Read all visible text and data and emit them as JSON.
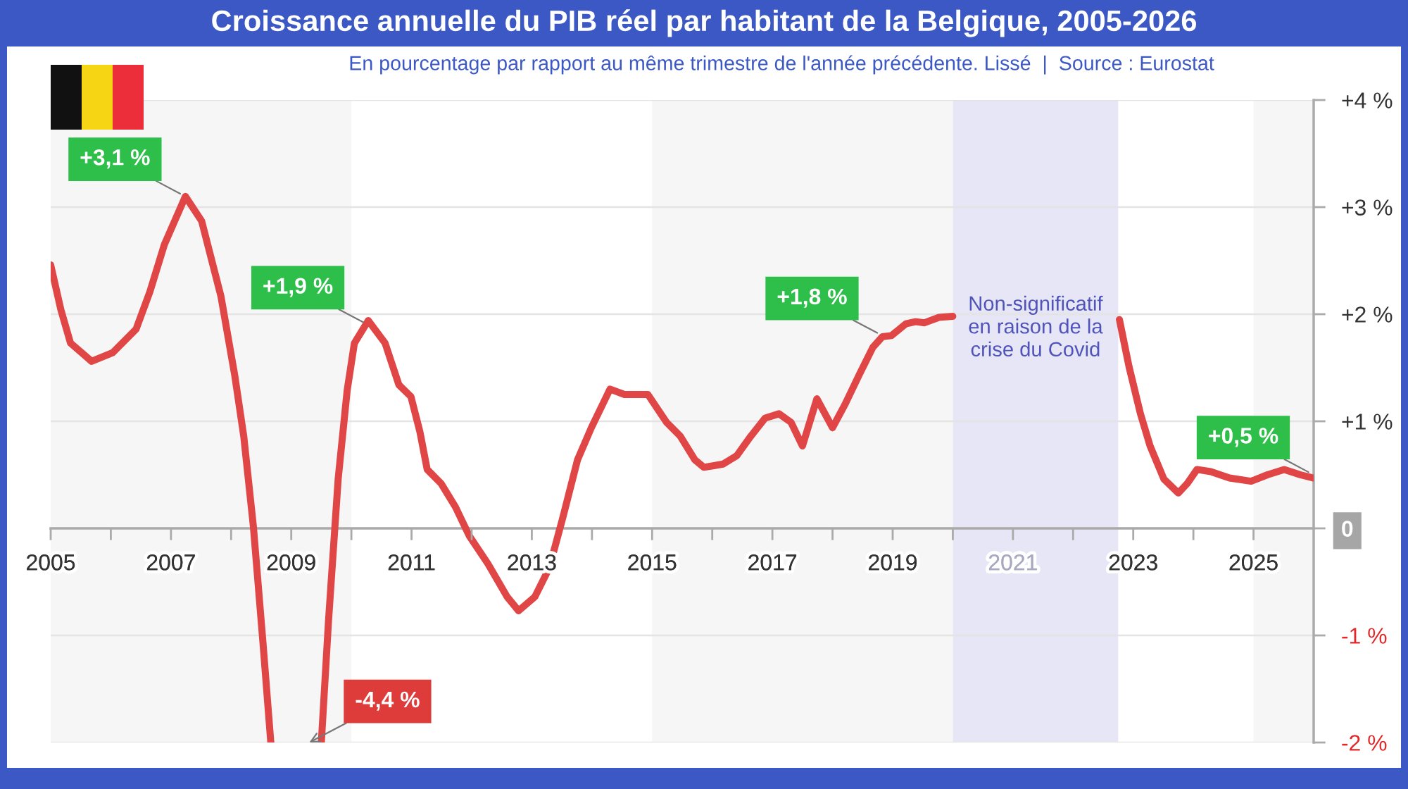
{
  "chart_data": {
    "type": "line",
    "title": "Croissance annuelle du PIB réel par habitant de la Belgique, 2005-2026",
    "subtitle": "En pourcentage par rapport au même trimestre de l'année précédente. Lissé  |  Source : Eurostat",
    "x": [
      2005.0,
      2005.17,
      2005.33,
      2005.68,
      2006.03,
      2006.42,
      2006.65,
      2006.89,
      2007.24,
      2007.51,
      2007.83,
      2008.06,
      2008.21,
      2008.37,
      2008.53,
      2008.66,
      2009.1,
      2009.5,
      2009.62,
      2009.78,
      2009.93,
      2010.05,
      2010.28,
      2010.56,
      2010.79,
      2010.99,
      2011.14,
      2011.26,
      2011.49,
      2011.73,
      2011.96,
      2012.27,
      2012.59,
      2012.78,
      2013.05,
      2013.29,
      2013.52,
      2013.76,
      2013.99,
      2014.3,
      2014.54,
      2014.93,
      2015.24,
      2015.47,
      2015.71,
      2015.86,
      2016.18,
      2016.41,
      2016.64,
      2016.88,
      2017.11,
      2017.31,
      2017.5,
      2017.74,
      2018.0,
      2018.21,
      2018.44,
      2018.67,
      2018.83,
      2018.98,
      2019.22,
      2019.38,
      2019.53,
      2019.77,
      2020.0,
      2021.4,
      2022.77,
      2022.93,
      2023.12,
      2023.28,
      2023.51,
      2023.75,
      2023.9,
      2024.06,
      2024.29,
      2024.6,
      2024.96,
      2025.23,
      2025.51,
      2025.78,
      2026.0
    ],
    "series": [
      {
        "color": "#e04646",
        "values": [
          2.46,
          2.04,
          1.73,
          1.56,
          1.64,
          1.86,
          2.21,
          2.65,
          3.1,
          2.87,
          2.17,
          1.43,
          0.86,
          0.02,
          -1.07,
          -2.0,
          null,
          -2.0,
          -0.86,
          0.46,
          1.29,
          1.73,
          1.94,
          1.73,
          1.34,
          1.23,
          0.9,
          0.55,
          0.42,
          0.2,
          -0.07,
          -0.33,
          -0.64,
          -0.77,
          -0.64,
          -0.37,
          0.11,
          0.64,
          0.94,
          1.3,
          1.25,
          1.25,
          0.99,
          0.86,
          0.64,
          0.57,
          0.6,
          0.68,
          0.86,
          1.03,
          1.07,
          0.99,
          0.77,
          1.21,
          0.94,
          1.16,
          1.43,
          1.69,
          1.79,
          1.8,
          1.91,
          1.93,
          1.92,
          1.97,
          1.98,
          null,
          1.95,
          1.51,
          1.07,
          0.77,
          0.46,
          0.33,
          0.42,
          0.55,
          0.53,
          0.47,
          0.44,
          0.5,
          0.55,
          0.5,
          0.47
        ]
      }
    ],
    "xlim": [
      2005,
      2026
    ],
    "xticks": [
      2005,
      {
        "value": 2006,
        "label": null
      },
      2007,
      {
        "value": 2008,
        "label": null
      },
      2009,
      {
        "value": 2010,
        "label": null
      },
      2011,
      {
        "value": 2012,
        "label": null
      },
      2013,
      {
        "value": 2014,
        "label": null
      },
      2015,
      {
        "value": 2016,
        "label": null
      },
      2017,
      {
        "value": 2018,
        "label": null
      },
      2019,
      {
        "value": 2020,
        "label": null
      },
      2021,
      {
        "value": 2022,
        "label": null
      },
      2023,
      {
        "value": 2024,
        "label": null
      },
      2025
    ],
    "ylim": [
      -2,
      4
    ],
    "yticks": [
      {
        "value": -2,
        "label": "-2 %"
      },
      {
        "value": -1,
        "label": "-1 %"
      },
      {
        "value": 0,
        "label": "0"
      },
      {
        "value": 1,
        "label": "+1 %"
      },
      {
        "value": 2,
        "label": "+2 %"
      },
      {
        "value": 3,
        "label": "+3 %"
      },
      {
        "value": 4,
        "label": "+4 %"
      }
    ],
    "grid": "y",
    "bands": [
      {
        "axis": "x",
        "from": 2005,
        "to": 2010,
        "color": "#f6f6f6"
      },
      {
        "axis": "x",
        "from": 2015,
        "to": 2020,
        "color": "#f6f6f6"
      },
      {
        "axis": "x",
        "from": 2020,
        "to": 2022.75,
        "color": "#e6e6f7",
        "label": "Non-significatif\nen raison de la\ncrise du Covid"
      },
      {
        "axis": "x",
        "from": 2025,
        "to": 2026,
        "color": "#f6f6f6"
      }
    ],
    "annotations": [
      {
        "text": "+3,1 %",
        "x": 2007.24,
        "y": 3.1
      },
      {
        "text": "+1,9 %",
        "x": 2010.28,
        "y": 1.9
      },
      {
        "text": "+1,8 %",
        "x": 2018.83,
        "y": 1.8
      },
      {
        "text": "+0,5 %",
        "x": 2026.0,
        "y": 0.5
      },
      {
        "text": "-4,4 %",
        "x": 2009.3,
        "y": -2
      }
    ]
  }
}
